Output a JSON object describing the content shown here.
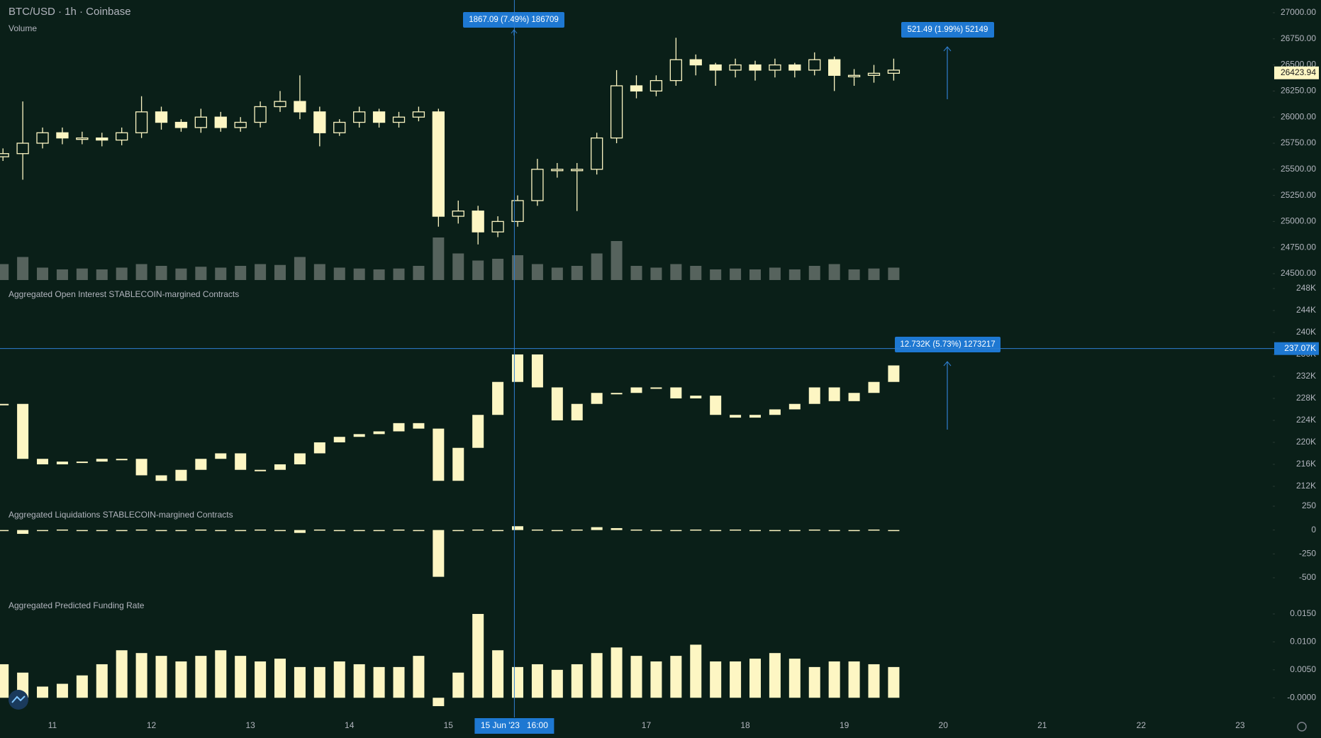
{
  "chart_data": [
    {
      "type": "candlestick",
      "title": "BTC/USD · 1h · Coinbase",
      "color": "#fdf6c3",
      "x": [
        10.5,
        10.7,
        10.9,
        11.1,
        11.3,
        11.5,
        11.7,
        11.9,
        12.1,
        12.3,
        12.5,
        12.7,
        12.9,
        13.1,
        13.3,
        13.5,
        13.7,
        13.9,
        14.1,
        14.3,
        14.5,
        14.7,
        14.9,
        15.1,
        15.3,
        15.5,
        15.7,
        15.9,
        16.1,
        16.3,
        16.5,
        16.7,
        16.9,
        17.1,
        17.3,
        17.5,
        17.7,
        17.9,
        18.1,
        18.3,
        18.5,
        18.7,
        18.9,
        19.1,
        19.3,
        19.5
      ],
      "open": [
        25620,
        25650,
        25750,
        25850,
        25800,
        25800,
        25780,
        25850,
        26050,
        25950,
        25900,
        26000,
        25900,
        25950,
        26100,
        26150,
        26050,
        25850,
        25950,
        26050,
        25950,
        26000,
        26050,
        25050,
        25100,
        24900,
        25000,
        25200,
        25500,
        25500,
        25500,
        25800,
        26300,
        26250,
        26350,
        26550,
        26500,
        26450,
        26500,
        26450,
        26500,
        26450,
        26550,
        26400,
        26400,
        26420
      ],
      "high": [
        25700,
        26150,
        25900,
        25900,
        25860,
        25850,
        25900,
        26200,
        26100,
        25980,
        26080,
        26050,
        26000,
        26150,
        26250,
        26400,
        26100,
        25980,
        26100,
        26080,
        26050,
        26100,
        26080,
        25200,
        25150,
        25050,
        25250,
        25600,
        25560,
        25560,
        25850,
        26450,
        26400,
        26400,
        26760,
        26600,
        26520,
        26560,
        26540,
        26560,
        26520,
        26620,
        26580,
        26460,
        26500,
        26560
      ],
      "low": [
        25580,
        25400,
        25700,
        25740,
        25740,
        25720,
        25730,
        25800,
        25880,
        25860,
        25850,
        25860,
        25860,
        25900,
        26050,
        25980,
        25720,
        25820,
        25900,
        25900,
        25900,
        25960,
        24950,
        24980,
        24780,
        24850,
        24950,
        25150,
        25420,
        25100,
        25450,
        25750,
        26180,
        26200,
        26300,
        26400,
        26300,
        26380,
        26350,
        26380,
        26380,
        26400,
        26250,
        26300,
        26330,
        26350
      ],
      "close": [
        25650,
        25750,
        25850,
        25800,
        25800,
        25780,
        25850,
        26050,
        25950,
        25900,
        26000,
        25900,
        25950,
        26100,
        26150,
        26050,
        25850,
        25950,
        26050,
        25950,
        26000,
        26050,
        25050,
        25100,
        24900,
        25000,
        25200,
        25500,
        25500,
        25500,
        25800,
        26300,
        26250,
        26350,
        26550,
        26500,
        26450,
        26500,
        26450,
        26500,
        26450,
        26550,
        26400,
        26400,
        26420,
        26450
      ],
      "volume": {
        "name": "Volume",
        "color": "#56635d",
        "values": [
          900,
          1300,
          700,
          600,
          650,
          600,
          700,
          900,
          800,
          650,
          750,
          700,
          800,
          900,
          850,
          1300,
          900,
          700,
          650,
          600,
          650,
          800,
          2400,
          1500,
          1100,
          1200,
          1400,
          900,
          700,
          800,
          1500,
          2200,
          800,
          700,
          900,
          800,
          600,
          650,
          600,
          700,
          600,
          800,
          900,
          600,
          650,
          700
        ]
      },
      "last_price": 26423.94,
      "xlim": [
        10.47,
        23.33
      ],
      "ylim": [
        24405,
        27122
      ],
      "yticks": [
        {
          "value": 24500,
          "label": "24500.00"
        },
        {
          "value": 24750,
          "label": "24750.00"
        },
        {
          "value": 25000,
          "label": "25000.00"
        },
        {
          "value": 25250,
          "label": "25250.00"
        },
        {
          "value": 25500,
          "label": "25500.00"
        },
        {
          "value": 25750,
          "label": "25750.00"
        },
        {
          "value": 26000,
          "label": "26000.00"
        },
        {
          "value": 26250,
          "label": "26250.00"
        },
        {
          "value": 26500,
          "label": "26500.00"
        },
        {
          "value": 26750,
          "label": "26750.00"
        },
        {
          "value": 27000,
          "label": "27000.00"
        }
      ]
    },
    {
      "type": "step",
      "title": "Aggregated Open Interest STABLECOIN-margined Contracts",
      "color": "#fdf6c3",
      "x": [
        10.5,
        10.7,
        10.9,
        11.1,
        11.3,
        11.5,
        11.7,
        11.9,
        12.1,
        12.3,
        12.5,
        12.7,
        12.9,
        13.1,
        13.3,
        13.5,
        13.7,
        13.9,
        14.1,
        14.3,
        14.5,
        14.7,
        14.9,
        15.1,
        15.3,
        15.5,
        15.7,
        15.9,
        16.1,
        16.3,
        16.5,
        16.7,
        16.9,
        17.1,
        17.3,
        17.5,
        17.7,
        17.9,
        18.1,
        18.3,
        18.5,
        18.7,
        18.9,
        19.1,
        19.3,
        19.5
      ],
      "values": [
        227000,
        217000,
        216000,
        216500,
        216500,
        217000,
        217000,
        214000,
        213000,
        215000,
        217000,
        218000,
        215000,
        215000,
        216000,
        218000,
        220000,
        221000,
        221500,
        222000,
        223500,
        222500,
        213000,
        219000,
        225000,
        231000,
        236000,
        230000,
        224000,
        227000,
        229000,
        229000,
        230000,
        230000,
        228000,
        228500,
        225000,
        224500,
        225000,
        226000,
        227000,
        230000,
        227500,
        229000,
        231000,
        234000
      ],
      "xlim": [
        10.47,
        23.33
      ],
      "ylim": [
        210190,
        248900
      ],
      "yticks": [
        {
          "value": 212000,
          "label": "212K"
        },
        {
          "value": 216000,
          "label": "216K"
        },
        {
          "value": 220000,
          "label": "220K"
        },
        {
          "value": 224000,
          "label": "224K"
        },
        {
          "value": 228000,
          "label": "228K"
        },
        {
          "value": 232000,
          "label": "232K"
        },
        {
          "value": 236000,
          "label": "236K"
        },
        {
          "value": 240000,
          "label": "240K"
        },
        {
          "value": 244000,
          "label": "244K"
        },
        {
          "value": 248000,
          "label": "248K"
        }
      ]
    },
    {
      "type": "bar",
      "title": "Aggregated Liquidations STABLECOIN-margined Contracts",
      "color": "#fdf6c3",
      "x": [
        10.5,
        10.7,
        10.9,
        11.1,
        11.3,
        11.5,
        11.7,
        11.9,
        12.1,
        12.3,
        12.5,
        12.7,
        12.9,
        13.1,
        13.3,
        13.5,
        13.7,
        13.9,
        14.1,
        14.3,
        14.5,
        14.7,
        14.9,
        15.1,
        15.3,
        15.5,
        15.7,
        15.9,
        16.1,
        16.3,
        16.5,
        16.7,
        16.9,
        17.1,
        17.3,
        17.5,
        17.7,
        17.9,
        18.1,
        18.3,
        18.5,
        18.7,
        18.9,
        19.1,
        19.3,
        19.5
      ],
      "values": [
        0,
        -40,
        -5,
        5,
        0,
        -5,
        0,
        5,
        -5,
        0,
        5,
        -5,
        0,
        5,
        -5,
        -30,
        5,
        0,
        -5,
        0,
        5,
        -5,
        -490,
        -10,
        5,
        0,
        40,
        5,
        0,
        5,
        30,
        20,
        5,
        0,
        0,
        5,
        0,
        5,
        0,
        -5,
        0,
        5,
        -10,
        0,
        5,
        0
      ],
      "xlim": [
        10.47,
        23.33
      ],
      "ylim": [
        -686,
        354
      ],
      "yticks": [
        -500,
        -250,
        0,
        250
      ]
    },
    {
      "type": "bar",
      "title": "Aggregated Predicted Funding Rate",
      "color": "#fdf6c3",
      "x": [
        10.5,
        10.7,
        10.9,
        11.1,
        11.3,
        11.5,
        11.7,
        11.9,
        12.1,
        12.3,
        12.5,
        12.7,
        12.9,
        13.1,
        13.3,
        13.5,
        13.7,
        13.9,
        14.1,
        14.3,
        14.5,
        14.7,
        14.9,
        15.1,
        15.3,
        15.5,
        15.7,
        15.9,
        16.1,
        16.3,
        16.5,
        16.7,
        16.9,
        17.1,
        17.3,
        17.5,
        17.7,
        17.9,
        18.1,
        18.3,
        18.5,
        18.7,
        18.9,
        19.1,
        19.3,
        19.5
      ],
      "values": [
        0.006,
        0.0045,
        0.002,
        0.0025,
        0.004,
        0.006,
        0.0085,
        0.008,
        0.0075,
        0.0065,
        0.0075,
        0.0085,
        0.0075,
        0.0065,
        0.007,
        0.0055,
        0.0055,
        0.0065,
        0.006,
        0.0055,
        0.0055,
        0.0075,
        -0.0015,
        0.0045,
        0.015,
        0.0085,
        0.0055,
        0.006,
        0.005,
        0.006,
        0.008,
        0.009,
        0.0075,
        0.0065,
        0.0075,
        0.0095,
        0.0065,
        0.0065,
        0.007,
        0.008,
        0.007,
        0.0055,
        0.0065,
        0.0065,
        0.006,
        0.0055
      ],
      "xlim": [
        10.47,
        23.33
      ],
      "ylim": [
        -0.002,
        0.0183
      ],
      "yticks": [
        {
          "value": 0,
          "label": "-0.0000"
        },
        {
          "value": 0.005,
          "label": "0.0050"
        },
        {
          "value": 0.01,
          "label": "0.0100"
        },
        {
          "value": 0.015,
          "label": "0.0150"
        }
      ],
      "xticks": [
        11,
        12,
        13,
        14,
        15,
        16,
        17,
        18,
        19,
        20,
        21,
        22,
        23
      ]
    }
  ],
  "crosshair": {
    "x": 15.667,
    "x_label": "15 Jun '23   16:00",
    "y_value": 237070,
    "y_label": "237.07K"
  },
  "measurements": [
    {
      "label": "1867.09 (7.49%) 186709"
    },
    {
      "label": "521.49 (1.99%) 52149"
    },
    {
      "label": "12.732K (5.73%) 1273217"
    }
  ]
}
